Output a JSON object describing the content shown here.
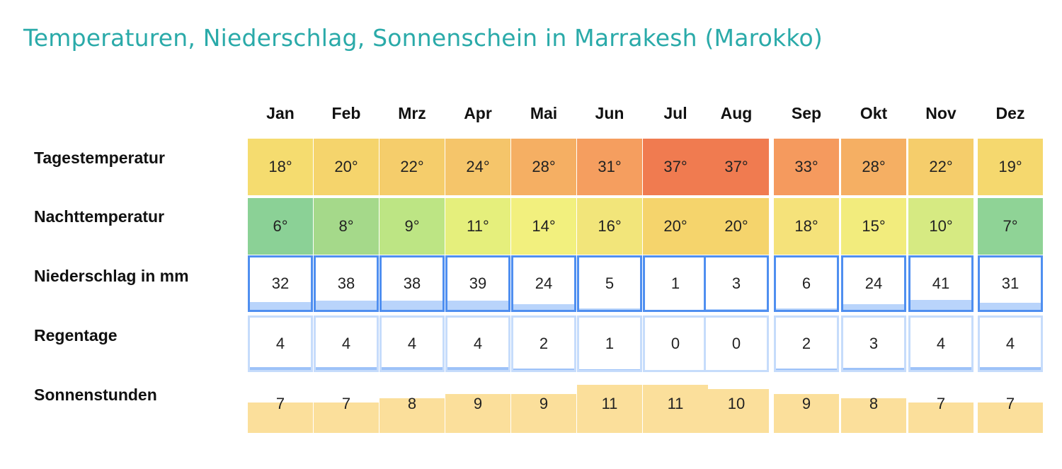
{
  "title": "Temperaturen, Niederschlag, Sonnenschein in Marrakesh (Marokko)",
  "chart_data": {
    "type": "table",
    "months": [
      "Jan",
      "Feb",
      "Mrz",
      "Apr",
      "Mai",
      "Jun",
      "Jul",
      "Aug",
      "Sep",
      "Okt",
      "Nov",
      "Dez"
    ],
    "rows": [
      {
        "key": "day_temp",
        "label": "Tagestemperatur",
        "unit": "°",
        "values": [
          18,
          20,
          22,
          24,
          28,
          31,
          37,
          37,
          33,
          28,
          22,
          19
        ]
      },
      {
        "key": "night_temp",
        "label": "Nachttemperatur",
        "unit": "°",
        "values": [
          6,
          8,
          9,
          11,
          14,
          16,
          20,
          20,
          18,
          15,
          10,
          7
        ]
      },
      {
        "key": "precip",
        "label": "Niederschlag in mm",
        "unit": "",
        "values": [
          32,
          38,
          38,
          39,
          24,
          5,
          1,
          3,
          6,
          24,
          41,
          31
        ]
      },
      {
        "key": "rain_days",
        "label": "Regentage",
        "unit": "",
        "values": [
          4,
          4,
          4,
          4,
          2,
          1,
          0,
          0,
          2,
          3,
          4,
          4
        ]
      },
      {
        "key": "sun_hours",
        "label": "Sonnenstunden",
        "unit": "",
        "values": [
          7,
          7,
          8,
          9,
          9,
          11,
          11,
          10,
          9,
          8,
          7,
          7
        ]
      }
    ],
    "colors": {
      "title": "#2aaaa9",
      "day_temp": [
        "#f5dc6f",
        "#f5d46c",
        "#f5cd6b",
        "#f5c56a",
        "#f5af63",
        "#f59e5f",
        "#f07b50",
        "#f07b50",
        "#f59a5e",
        "#f5af63",
        "#f5cd6b",
        "#f5d86e"
      ],
      "night_temp": [
        "#8bd196",
        "#a5d98a",
        "#bde584",
        "#e5ef7c",
        "#f2f07e",
        "#f2e57a",
        "#f5d46c",
        "#f5d46c",
        "#f5e27a",
        "#f2ec7d",
        "#d6ea82",
        "#8fd396"
      ],
      "precip_border": "#4f8ff0",
      "precip_fill": "#b9d4fb",
      "rain_days_border": "#c6dcfb",
      "rain_days_fill": "#9dc2f8",
      "sun_fill": "#fbdf9b"
    }
  }
}
